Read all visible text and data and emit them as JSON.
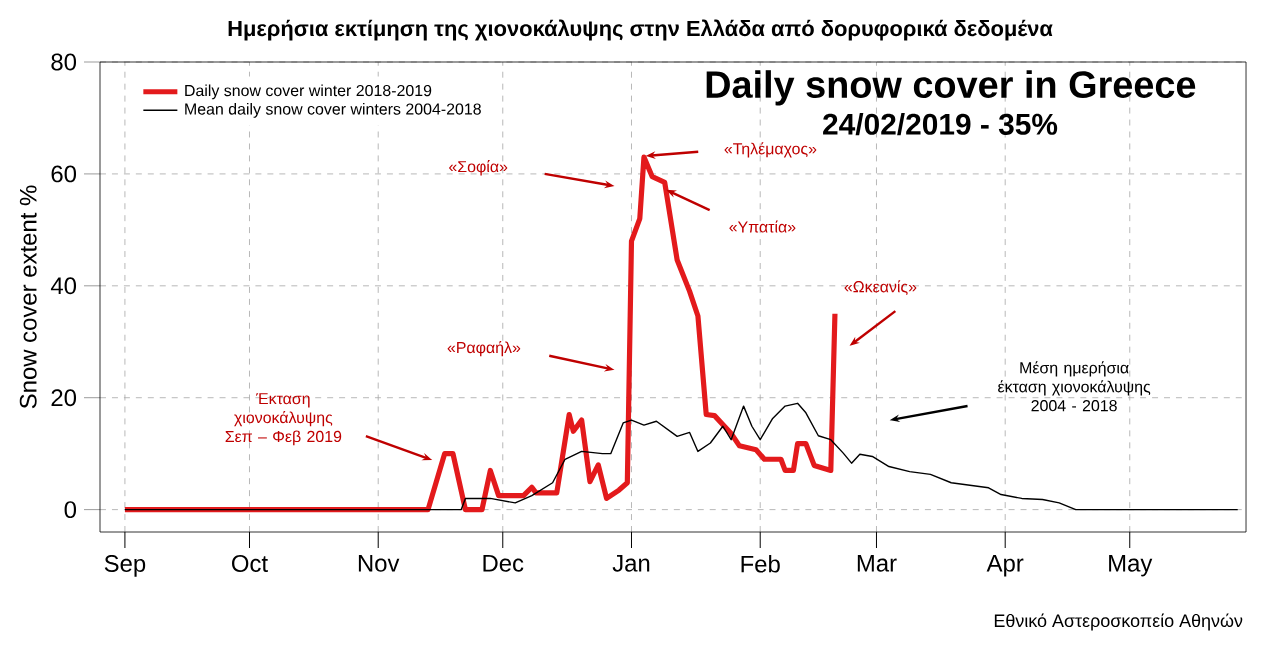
{
  "chart_data": {
    "type": "line",
    "title": "Ημερήσια εκτίμηση της χιονοκάλυψης στην Ελλάδα από δορυφορικά δεδομένα",
    "ylabel": "Snow cover extent %",
    "xlim": [
      "2018-08-26",
      "2019-05-29"
    ],
    "ylim": [
      -4,
      80
    ],
    "xticks": [
      {
        "value": "2018-09-01",
        "label": "Sep"
      },
      {
        "value": "2018-10-01",
        "label": "Oct"
      },
      {
        "value": "2018-11-01",
        "label": "Nov"
      },
      {
        "value": "2018-12-01",
        "label": "Dec"
      },
      {
        "value": "2019-01-01",
        "label": "Jan"
      },
      {
        "value": "2019-02-01",
        "label": "Feb"
      },
      {
        "value": "2019-03-01",
        "label": "Mar"
      },
      {
        "value": "2019-04-01",
        "label": "Apr"
      },
      {
        "value": "2019-05-01",
        "label": "May"
      }
    ],
    "yticks": [
      0,
      20,
      40,
      60,
      80
    ],
    "grid": true,
    "legend": "top left",
    "line_style": "solid",
    "marker": "none",
    "series": [
      {
        "name": "Daily snow cover winter 2018-2019",
        "color": "#e31a1c",
        "x": [
          "2018-09-01",
          "2018-11-13",
          "2018-11-17",
          "2018-11-19",
          "2018-11-22",
          "2018-11-26",
          "2018-11-28",
          "2018-11-30",
          "2018-12-06",
          "2018-12-08",
          "2018-12-09",
          "2018-12-14",
          "2018-12-17",
          "2018-12-18",
          "2018-12-20",
          "2018-12-22",
          "2018-12-24",
          "2018-12-26",
          "2018-12-29",
          "2018-12-31",
          "2019-01-01",
          "2019-01-03",
          "2019-01-04",
          "2019-01-06",
          "2019-01-09",
          "2019-01-12",
          "2019-01-15",
          "2019-01-17",
          "2019-01-19",
          "2019-01-21",
          "2019-01-25",
          "2019-01-27",
          "2019-01-31",
          "2019-02-02",
          "2019-02-06",
          "2019-02-07",
          "2019-02-09",
          "2019-02-10",
          "2019-02-12",
          "2019-02-14",
          "2019-02-18",
          "2019-02-19"
        ],
        "values": [
          0,
          0,
          10,
          10,
          0,
          0,
          7,
          2.5,
          2.5,
          4,
          3,
          3,
          17,
          14,
          16,
          5,
          8,
          2,
          3.5,
          4.8,
          48,
          52,
          63,
          59.5,
          58.5,
          44.6,
          39,
          34.6,
          17,
          16.8,
          13.6,
          11.4,
          10.7,
          9,
          9,
          7,
          7,
          11.8,
          11.8,
          7.9,
          7,
          35
        ]
      },
      {
        "name": "Mean daily snow cover winters 2004-2018",
        "color": "#000000",
        "x": [
          "2018-09-01",
          "2018-11-21",
          "2018-11-22",
          "2018-11-28",
          "2018-12-04",
          "2018-12-08",
          "2018-12-13",
          "2018-12-16",
          "2018-12-20",
          "2018-12-25",
          "2018-12-27",
          "2018-12-30",
          "2019-01-01",
          "2019-01-04",
          "2019-01-07",
          "2019-01-12",
          "2019-01-15",
          "2019-01-17",
          "2019-01-20",
          "2019-01-23",
          "2019-01-25",
          "2019-01-28",
          "2019-01-30",
          "2019-02-01",
          "2019-02-04",
          "2019-02-07",
          "2019-02-10",
          "2019-02-12",
          "2019-02-15",
          "2019-02-18",
          "2019-02-21",
          "2019-02-23",
          "2019-02-25",
          "2019-02-28",
          "2019-03-04",
          "2019-03-09",
          "2019-03-14",
          "2019-03-19",
          "2019-03-28",
          "2019-03-31",
          "2019-04-05",
          "2019-04-10",
          "2019-04-14",
          "2019-04-18",
          "2019-05-27"
        ],
        "values": [
          0,
          0,
          2,
          2,
          1.2,
          2.5,
          4.8,
          9,
          10.4,
          10,
          10,
          15.5,
          16,
          15.1,
          15.8,
          13.1,
          13.8,
          10.4,
          11.9,
          14.9,
          12.5,
          18.5,
          14.9,
          12.5,
          16.3,
          18.5,
          19,
          17.3,
          13.2,
          12.5,
          10.1,
          8.3,
          9.9,
          9.5,
          7.7,
          6.8,
          6.3,
          4.8,
          3.9,
          2.7,
          2,
          1.8,
          1.2,
          0,
          0
        ]
      }
    ],
    "annotations": [
      "Daily snow cover in Greece",
      "24/02/2019 - 35%",
      "«Σοφία»",
      "«Τηλέμαχος»",
      "«Υπατία»",
      "«Ραφαήλ»",
      "«Ωκεανίς»",
      "Έκταση χιονοκάλυψης Σεπ – Φεβ 2019",
      "Μέση ημερήσια έκταση χιονοκάλυψης 2004 - 2018",
      "Εθνικό Αστεροσκοπείο Αθηνών"
    ]
  }
}
